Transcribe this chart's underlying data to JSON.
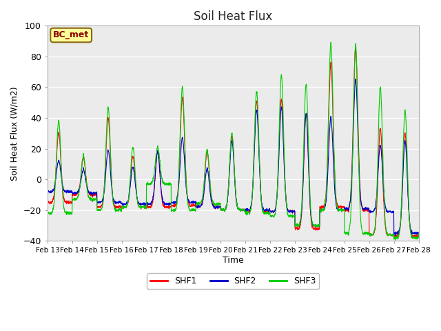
{
  "title": "Soil Heat Flux",
  "xlabel": "Time",
  "ylabel": "Soil Heat Flux (W/m2)",
  "ylim": [
    -40,
    100
  ],
  "xlim": [
    0,
    15
  ],
  "background_color": "#ffffff",
  "plot_bg_color": "#ebebeb",
  "legend_label": "BC_met",
  "legend_box_color": "#ffff99",
  "legend_box_edge": "#8B6914",
  "series_colors": [
    "#ff0000",
    "#0000cc",
    "#00cc00"
  ],
  "series_labels": [
    "SHF1",
    "SHF2",
    "SHF3"
  ],
  "xtick_labels": [
    "Feb 13",
    "Feb 14",
    "Feb 15",
    "Feb 16",
    "Feb 17",
    "Feb 18",
    "Feb 19",
    "Feb 20",
    "Feb 21",
    "Feb 22",
    "Feb 23",
    "Feb 24",
    "Feb 25",
    "Feb 26",
    "Feb 27",
    "Feb 28"
  ],
  "ytick_values": [
    -40,
    -20,
    0,
    20,
    40,
    60,
    80,
    100
  ]
}
